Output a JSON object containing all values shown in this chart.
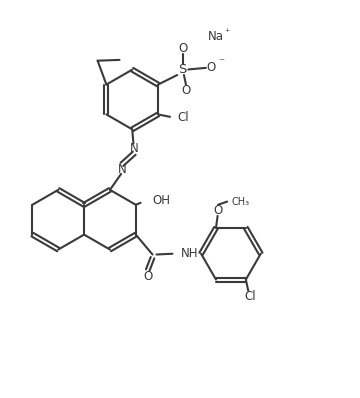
{
  "bg_color": "#ffffff",
  "line_color": "#3a3a3a",
  "text_color": "#3a3a3a",
  "lw": 1.5,
  "figsize": [
    3.6,
    3.98
  ],
  "dpi": 100,
  "xlim": [
    0,
    9
  ],
  "ylim": [
    0,
    10
  ],
  "r_hex": 0.75,
  "font_size": 8.5,
  "font_size_small": 7.0
}
